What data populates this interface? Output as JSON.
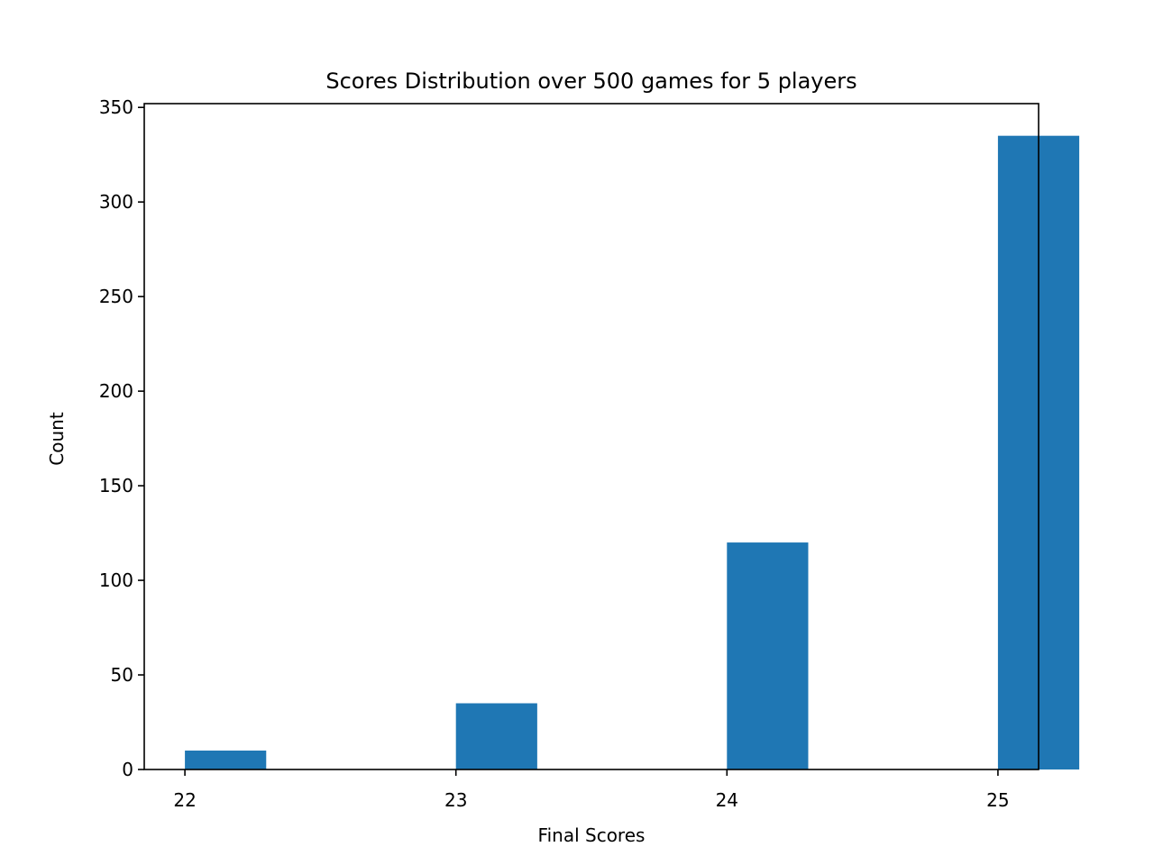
{
  "chart_data": {
    "type": "bar",
    "title": "Scores Distribution over 500 games for 5 players",
    "xlabel": "Final Scores",
    "ylabel": "Count",
    "categories": [
      "22",
      "23",
      "24",
      "25"
    ],
    "x": [
      22,
      23,
      24,
      25
    ],
    "values": [
      10,
      35,
      120,
      335
    ],
    "xlim": [
      21.85,
      25.15
    ],
    "ylim": [
      0,
      352
    ],
    "x_ticks": [
      22,
      23,
      24,
      25
    ],
    "y_ticks": [
      0,
      50,
      100,
      150,
      200,
      250,
      300,
      350
    ],
    "bar_width": 0.3,
    "bar_color": "#1f77b4",
    "grid": false,
    "legend": null
  }
}
